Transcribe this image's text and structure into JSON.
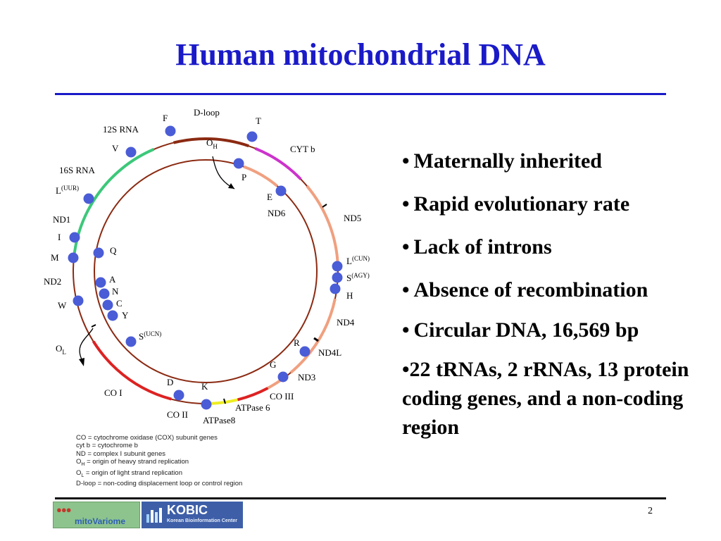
{
  "slide": {
    "title": "Human mitochondrial DNA",
    "page_number": "2"
  },
  "bullets": [
    {
      "marker": "•",
      "text": "Maternally inherited"
    },
    {
      "marker": "•",
      "text": "Rapid evolutionary rate"
    },
    {
      "marker": "•",
      "text": "Lack of introns"
    },
    {
      "marker": "•",
      "text": "Absence of recombination"
    },
    {
      "marker": "•",
      "text": "Circular DNA, 16,569 bp"
    },
    {
      "marker": "•",
      "text": "22 tRNAs, 2 rRNAs, 13 protein coding genes, and a non-coding region"
    }
  ],
  "diagram": {
    "gene_labels": {
      "d_loop": "D-loop",
      "rrna_12s": "12S RNA",
      "rrna_16s": "16S RNA",
      "cyt_b": "CYT b",
      "nd6": "ND6",
      "nd5": "ND5",
      "nd4": "ND4",
      "nd4l": "ND4L",
      "nd3": "ND3",
      "co3": "CO III",
      "atpase6": "ATPase 6",
      "atpase8": "ATPase8",
      "co2": "CO II",
      "co1": "CO I",
      "nd2": "ND2",
      "nd1": "ND1"
    },
    "trna_labels": {
      "F": "F",
      "T": "T",
      "V": "V",
      "P": "P",
      "E": "E",
      "L_UUR": "L",
      "L_UUR_sup": "(UUR)",
      "I": "I",
      "M": "M",
      "Q": "Q",
      "W": "W",
      "A": "A",
      "N": "N",
      "C": "C",
      "Y": "Y",
      "S_UCN": "S",
      "S_UCN_sup": "(UCN)",
      "L_CUN": "L",
      "L_CUN_sup": "(CUN)",
      "S_AGY": "S",
      "S_AGY_sup": "(AGY)",
      "H": "H",
      "R": "R",
      "G": "G",
      "K": "K",
      "D": "D"
    },
    "origins": {
      "oh_main": "O",
      "oh_sub": "H",
      "ol_main": "O",
      "ol_sub": "L"
    },
    "colors": {
      "strand": "#8b2a12",
      "d_loop": "#8b2a12",
      "rrna": "#3cc87a",
      "cyt_b": "#cc33cc",
      "nd_genes": "#f0a080",
      "co_genes": "#dd2222",
      "atpase": "#eeee22",
      "trna_dot": "#4a5cd6",
      "title": "#1a1ac8"
    }
  },
  "legend": [
    {
      "text": "CO = cytochrome oxidase (COX) subunit genes"
    },
    {
      "text": "cyt b = cytochrome b"
    },
    {
      "text": "ND = complex I subunit genes"
    },
    {
      "main": "O",
      "sub": "H",
      "text": " = origin of heavy strand replication"
    },
    {
      "main": "O",
      "sub": "L",
      "text": " = origin of light strand replication"
    },
    {
      "text": "D-loop = non-coding displacement loop or control region"
    }
  ],
  "footer": {
    "mito_logo_text": "mitoVariome",
    "kobic_logo_text": "KOBIC",
    "kobic_logo_subtext": "Korean Bioinformation Center"
  }
}
